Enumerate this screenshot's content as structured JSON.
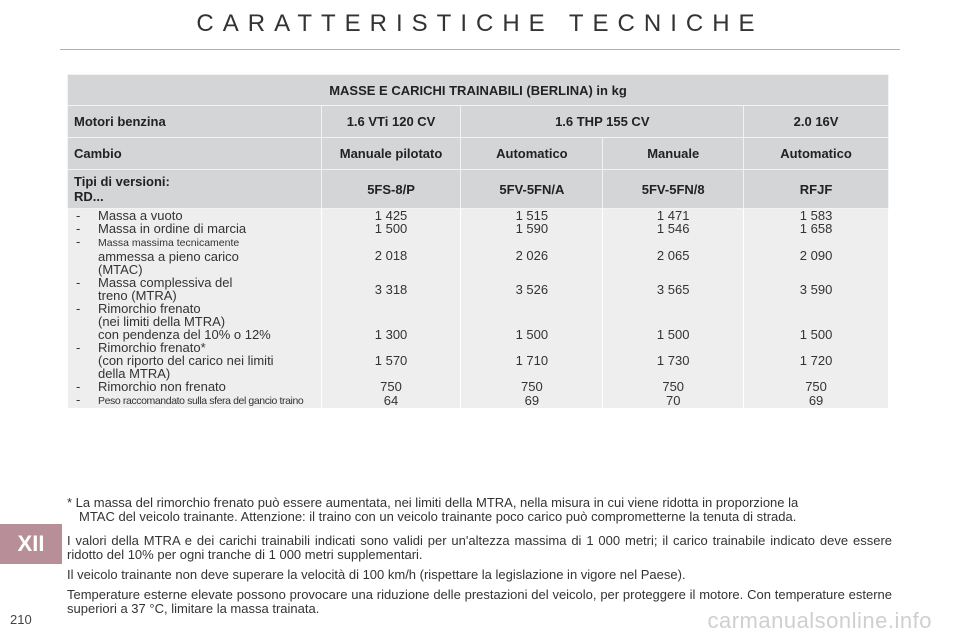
{
  "header": {
    "title": "CARATTERISTICHE TECNICHE"
  },
  "table": {
    "title": "MASSE E CARICHI TRAINABILI (BERLINA) in kg",
    "motori_label": "Motori benzina",
    "motori": [
      "1.6 VTi 120 CV",
      "1.6 THP 155 CV",
      "2.0 16V"
    ],
    "cambio_label": "Cambio",
    "cambio": [
      "Manuale pilotato",
      "Automatico",
      "Manuale",
      "Automatico"
    ],
    "tipi_label_1": "Tipi di versioni:",
    "tipi_label_2": "RD...",
    "tipi": [
      "5FS-8/P",
      "5FV-5FN/A",
      "5FV-5FN/8",
      "RFJF"
    ],
    "rows": [
      {
        "label": [
          "Massa a vuoto"
        ],
        "values": [
          "1 425",
          "1 515",
          "1 471",
          "1 583"
        ]
      },
      {
        "label": [
          "Massa in ordine di marcia"
        ],
        "values": [
          "1 500",
          "1 590",
          "1 546",
          "1 658"
        ]
      },
      {
        "label": [
          "Massa massima tecnicamente",
          "ammessa a pieno carico",
          "(MTAC)"
        ],
        "values": [
          "2 018",
          "2 026",
          "2 065",
          "2 090"
        ]
      },
      {
        "label": [
          "Massa complessiva del",
          "treno (MTRA)"
        ],
        "values": [
          "3 318",
          "3 526",
          "3 565",
          "3 590"
        ]
      },
      {
        "label": [
          "Rimorchio frenato",
          "(nei limiti della MTRA)"
        ],
        "values": [
          "",
          "",
          "",
          ""
        ]
      },
      {
        "label": [
          "con pendenza del 10% o 12%"
        ],
        "values": [
          "1 300",
          "1 500",
          "1 500",
          "1 500"
        ]
      },
      {
        "label": [
          "Rimorchio frenato*",
          "(con riporto del carico nei limiti",
          "della MTRA)"
        ],
        "values": [
          "1 570",
          "1 710",
          "1 730",
          "1 720"
        ]
      },
      {
        "label": [
          "Rimorchio non frenato"
        ],
        "values": [
          "750",
          "750",
          "750",
          "750"
        ]
      },
      {
        "label": [
          "Peso raccomandato sulla sfera del gancio traino"
        ],
        "values": [
          "64",
          "69",
          "70",
          "69"
        ]
      }
    ],
    "dash": "-"
  },
  "notes": {
    "footnote_1": "* La massa del rimorchio frenato può essere aumentata, nei limiti della MTRA, nella misura in cui viene ridotta in proporzione la",
    "footnote_2": "MTAC del veicolo trainante. Attenzione: il traino con un veicolo trainante poco carico può comprometterne la tenuta di strada.",
    "p1": "I valori della MTRA e dei carichi trainabili indicati sono validi per un'altezza massima di 1 000 metri; il carico trainabile indicato deve essere ridotto del 10% per ogni tranche di 1 000 metri supplementari.",
    "p2": "Il veicolo trainante non deve superare la velocità di 100 km/h (rispettare la legislazione in vigore nel Paese).",
    "p3": "Temperature esterne elevate possono provocare una riduzione delle prestazioni del veicolo, per proteggere il motore. Con temperature esterne superiori a 37 °C, limitare la massa trainata."
  },
  "chapter": "XII",
  "page_number": "210",
  "watermark": "carmanualsonline.info",
  "colors": {
    "badge": "#b88f99",
    "header_cell": "#d4d5d6",
    "body_cell": "#eeeeef"
  }
}
